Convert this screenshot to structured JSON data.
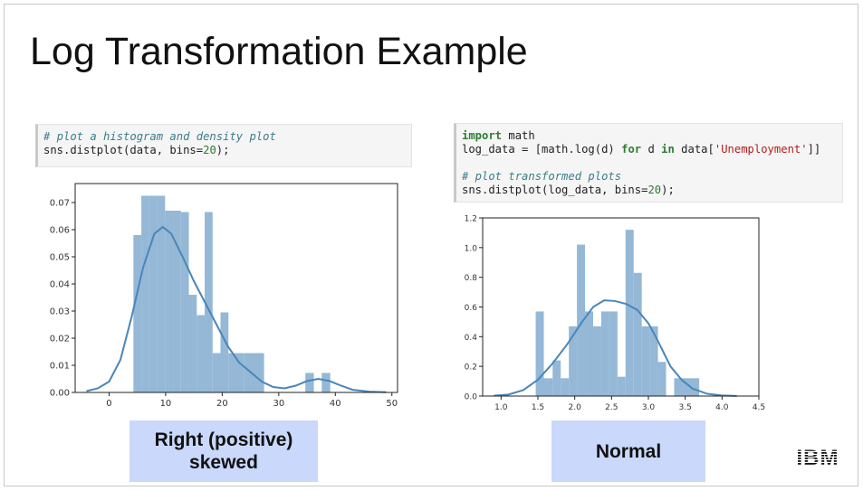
{
  "slide": {
    "title": "Log Transformation Example"
  },
  "code_left": {
    "line1": "# plot a histogram and density plot",
    "line2_a": "sns.distplot(data, bins=",
    "line2_num": "20",
    "line2_b": ");"
  },
  "code_right": {
    "line1_kw": "import",
    "line1_rest": " math",
    "line2_a": "log_data = [math.log(d) ",
    "line2_kw1": "for",
    "line2_b": " d ",
    "line2_kw2": "in",
    "line2_c": " data[",
    "line2_str": "'Unemployment'",
    "line2_d": "]]",
    "line3": "# plot transformed plots",
    "line4_a": "sns.distplot(log_data, bins=",
    "line4_num": "20",
    "line4_b": ");"
  },
  "labels": {
    "left_line1": "Right (positive)",
    "left_line2": "skewed",
    "right": "Normal"
  },
  "logo": {
    "text": "IBM"
  },
  "colors": {
    "bar": "#94b8d6",
    "kde": "#4a86b8",
    "label_bg": "#c9d8fb"
  },
  "chart_data": [
    {
      "type": "bar",
      "xlim": [
        -6,
        51
      ],
      "ylim": [
        0,
        0.077
      ],
      "xticks": [
        0,
        10,
        20,
        30,
        40,
        50
      ],
      "yticks": [
        0.0,
        0.01,
        0.02,
        0.03,
        0.04,
        0.05,
        0.06,
        0.07
      ],
      "ytick_labels": [
        "0.00",
        "0.01",
        "0.02",
        "0.03",
        "0.04",
        "0.05",
        "0.06",
        "0.07"
      ],
      "bins": [
        {
          "x0": 4.3,
          "x1": 5.7,
          "h": 0.058
        },
        {
          "x0": 5.7,
          "x1": 7.1,
          "h": 0.0725
        },
        {
          "x0": 7.1,
          "x1": 8.5,
          "h": 0.0725
        },
        {
          "x0": 8.5,
          "x1": 9.9,
          "h": 0.0725
        },
        {
          "x0": 9.9,
          "x1": 11.3,
          "h": 0.067
        },
        {
          "x0": 11.3,
          "x1": 12.7,
          "h": 0.067
        },
        {
          "x0": 12.7,
          "x1": 14.1,
          "h": 0.0665
        },
        {
          "x0": 14.1,
          "x1": 15.5,
          "h": 0.036
        },
        {
          "x0": 15.5,
          "x1": 16.9,
          "h": 0.0285
        },
        {
          "x0": 16.9,
          "x1": 18.3,
          "h": 0.0665
        },
        {
          "x0": 18.3,
          "x1": 19.7,
          "h": 0.0145
        },
        {
          "x0": 19.7,
          "x1": 21.1,
          "h": 0.0295
        },
        {
          "x0": 21.1,
          "x1": 22.5,
          "h": 0.0145
        },
        {
          "x0": 22.5,
          "x1": 23.9,
          "h": 0.0145
        },
        {
          "x0": 23.9,
          "x1": 27.4,
          "h": 0.0145
        },
        {
          "x0": 34.7,
          "x1": 36.2,
          "h": 0.0072
        },
        {
          "x0": 37.6,
          "x1": 39.1,
          "h": 0.0072
        }
      ],
      "kde": [
        [
          -4,
          0.0005
        ],
        [
          -2,
          0.0015
        ],
        [
          0,
          0.004
        ],
        [
          2,
          0.012
        ],
        [
          4,
          0.028
        ],
        [
          6,
          0.046
        ],
        [
          8,
          0.0585
        ],
        [
          9.5,
          0.061
        ],
        [
          11,
          0.0585
        ],
        [
          13,
          0.05
        ],
        [
          15,
          0.041
        ],
        [
          17,
          0.033
        ],
        [
          19,
          0.025
        ],
        [
          21,
          0.017
        ],
        [
          23,
          0.011
        ],
        [
          25,
          0.0075
        ],
        [
          27,
          0.004
        ],
        [
          29,
          0.002
        ],
        [
          31,
          0.0015
        ],
        [
          33,
          0.0025
        ],
        [
          35,
          0.0042
        ],
        [
          37,
          0.005
        ],
        [
          39,
          0.0042
        ],
        [
          41,
          0.0025
        ],
        [
          43,
          0.001
        ],
        [
          46,
          0.0003
        ],
        [
          49,
          0.0001
        ]
      ]
    },
    {
      "type": "bar",
      "xlim": [
        0.75,
        4.5
      ],
      "ylim": [
        0,
        1.2
      ],
      "xticks": [
        1.0,
        1.5,
        2.0,
        2.5,
        3.0,
        3.5,
        4.0,
        4.5
      ],
      "yticks": [
        0.0,
        0.2,
        0.4,
        0.6,
        0.8,
        1.0,
        1.2
      ],
      "ytick_labels": [
        "0.0",
        "0.2",
        "0.4",
        "0.6",
        "0.8",
        "1.0",
        "1.2"
      ],
      "bins": [
        {
          "x0": 1.47,
          "x1": 1.58,
          "h": 0.57
        },
        {
          "x0": 1.58,
          "x1": 1.7,
          "h": 0.12
        },
        {
          "x0": 1.7,
          "x1": 1.81,
          "h": 0.24
        },
        {
          "x0": 1.81,
          "x1": 1.92,
          "h": 0.12
        },
        {
          "x0": 1.92,
          "x1": 2.03,
          "h": 0.47
        },
        {
          "x0": 2.03,
          "x1": 2.14,
          "h": 1.02
        },
        {
          "x0": 2.14,
          "x1": 2.25,
          "h": 0.57
        },
        {
          "x0": 2.25,
          "x1": 2.36,
          "h": 0.47
        },
        {
          "x0": 2.36,
          "x1": 2.47,
          "h": 0.57
        },
        {
          "x0": 2.47,
          "x1": 2.58,
          "h": 0.57
        },
        {
          "x0": 2.58,
          "x1": 2.69,
          "h": 0.13
        },
        {
          "x0": 2.69,
          "x1": 2.8,
          "h": 1.12
        },
        {
          "x0": 2.8,
          "x1": 2.91,
          "h": 0.83
        },
        {
          "x0": 2.91,
          "x1": 3.02,
          "h": 0.47
        },
        {
          "x0": 3.02,
          "x1": 3.13,
          "h": 0.47
        },
        {
          "x0": 3.13,
          "x1": 3.24,
          "h": 0.23
        },
        {
          "x0": 3.35,
          "x1": 3.69,
          "h": 0.12
        }
      ],
      "kde": [
        [
          0.9,
          0.002
        ],
        [
          1.1,
          0.01
        ],
        [
          1.3,
          0.04
        ],
        [
          1.5,
          0.11
        ],
        [
          1.7,
          0.22
        ],
        [
          1.9,
          0.35
        ],
        [
          2.1,
          0.5
        ],
        [
          2.25,
          0.6
        ],
        [
          2.4,
          0.645
        ],
        [
          2.55,
          0.64
        ],
        [
          2.7,
          0.62
        ],
        [
          2.85,
          0.58
        ],
        [
          3.0,
          0.49
        ],
        [
          3.1,
          0.4
        ],
        [
          3.2,
          0.3
        ],
        [
          3.3,
          0.2
        ],
        [
          3.45,
          0.11
        ],
        [
          3.6,
          0.05
        ],
        [
          3.8,
          0.015
        ],
        [
          4.0,
          0.004
        ],
        [
          4.2,
          0.001
        ]
      ]
    }
  ]
}
